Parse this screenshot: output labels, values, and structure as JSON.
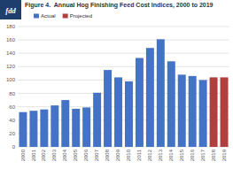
{
  "chart_data": {
    "type": "bar",
    "title": "Figure 4.  Annual Hog Finishing Feed Cost Indices, 2000 to 2019",
    "categories": [
      "2000",
      "2001",
      "2002",
      "2003",
      "2004",
      "2005",
      "2006",
      "2007",
      "2008",
      "2009",
      "2010",
      "2011",
      "2012",
      "2013",
      "2014",
      "2015",
      "2016",
      "2017",
      "2018",
      "2019"
    ],
    "series": [
      {
        "name": "Actual",
        "color": "#4472c4",
        "values": [
          52,
          54,
          56,
          62,
          70,
          57,
          59,
          81,
          115,
          104,
          98,
          133,
          148,
          161,
          128,
          108,
          106,
          100,
          null,
          null
        ]
      },
      {
        "name": "Projected",
        "color": "#b04040",
        "values": [
          null,
          null,
          null,
          null,
          null,
          null,
          null,
          null,
          null,
          null,
          null,
          null,
          null,
          null,
          null,
          null,
          null,
          null,
          104,
          104
        ]
      }
    ],
    "stacked": true,
    "ylim": [
      0,
      180
    ],
    "yticks": [
      0,
      20,
      40,
      60,
      80,
      100,
      120,
      140,
      160,
      180
    ],
    "grid": true,
    "legend": "top",
    "annotations": [
      {
        "text": "fdd",
        "color": "#1e3f6e"
      }
    ]
  }
}
